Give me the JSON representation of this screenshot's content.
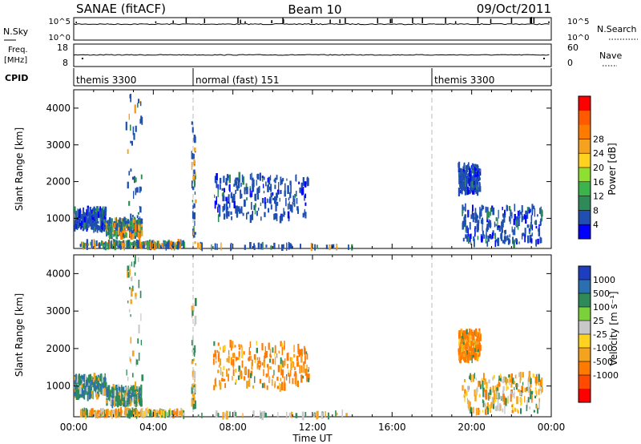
{
  "header": {
    "radar": "SANAE (fitACF)",
    "beam": "Beam 10",
    "date": "09/Oct/2011"
  },
  "strips": {
    "nsky": {
      "label": "N.Sky",
      "ticks": [
        "10^5",
        "10^0"
      ]
    },
    "nsearch": {
      "label": "N.Search",
      "ticks": [
        "10^5",
        "10^0"
      ]
    },
    "freq": {
      "label_top": "Freq.",
      "label_bottom": "[MHz]",
      "ticks": [
        "18",
        "8"
      ]
    },
    "nave": {
      "label": "Nave",
      "ticks": [
        "60",
        "0"
      ]
    },
    "cpid": {
      "label": "CPID",
      "segments": [
        {
          "name": "themis 3300",
          "start": 0,
          "end": 6
        },
        {
          "name": "normal (fast) 151",
          "start": 6,
          "end": 18
        },
        {
          "name": "themis 3300",
          "start": 18,
          "end": 24
        }
      ]
    }
  },
  "chart_data": [
    {
      "type": "heatmap",
      "title": "Power",
      "ylabel": "Slant Range [km]",
      "xlabel": "Time UT",
      "xlim": [
        0,
        24
      ],
      "ylim": [
        180,
        4500
      ],
      "yticks": [
        1000,
        2000,
        3000,
        4000
      ],
      "xticks": [
        "00:00",
        "04:00",
        "08:00",
        "12:00",
        "16:00",
        "20:00",
        "00:00"
      ],
      "colorbar": {
        "label": "Power [dB]",
        "ticks": [
          "4",
          "8",
          "12",
          "16",
          "20",
          "24",
          "28"
        ],
        "colors": [
          "#0000ff",
          "#1f4fb0",
          "#2e8b57",
          "#3cb44b",
          "#8fdf30",
          "#ffd21f",
          "#f5a21f",
          "#ff7a00",
          "#ff5a00",
          "#ff0000"
        ]
      },
      "clusters": [
        {
          "t": [
            0.0,
            1.6
          ],
          "r": [
            700,
            1250
          ],
          "level": "low"
        },
        {
          "t": [
            1.6,
            3.4
          ],
          "r": [
            500,
            950
          ],
          "level": "mixed"
        },
        {
          "t": [
            0.3,
            5.5
          ],
          "r": [
            230,
            330
          ],
          "level": "mixed"
        },
        {
          "t": [
            2.6,
            3.4
          ],
          "r": [
            1000,
            4400
          ],
          "level": "sparse"
        },
        {
          "t": [
            5.9,
            6.1
          ],
          "r": [
            300,
            3600
          ],
          "level": "sparse"
        },
        {
          "t": [
            6.0,
            14.0
          ],
          "r": [
            200,
            260
          ],
          "level": "sparse"
        },
        {
          "t": [
            7.0,
            11.8
          ],
          "r": [
            950,
            2150
          ],
          "level": "low"
        },
        {
          "t": [
            19.3,
            20.4
          ],
          "r": [
            1700,
            2450
          ],
          "level": "low"
        },
        {
          "t": [
            19.5,
            23.5
          ],
          "r": [
            300,
            1300
          ],
          "level": "low"
        }
      ]
    },
    {
      "type": "heatmap",
      "title": "Velocity",
      "ylabel": "Slant Range [km]",
      "xlabel": "Time UT",
      "xlim": [
        0,
        24
      ],
      "ylim": [
        180,
        4500
      ],
      "yticks": [
        1000,
        2000,
        3000,
        4000
      ],
      "xticks": [
        "00:00",
        "04:00",
        "08:00",
        "12:00",
        "16:00",
        "20:00",
        "00:00"
      ],
      "colorbar": {
        "label": "Velocity [m s⁻¹]",
        "ticks": [
          "1000",
          "500",
          "100",
          "25",
          "-25",
          "-100",
          "-500",
          "-1000"
        ],
        "colors": [
          "#1d3fbf",
          "#2a6fb0",
          "#2e8b57",
          "#7ad13a",
          "#c8c8c8",
          "#ffd21f",
          "#f5a21f",
          "#ff7a00",
          "#ff4a00",
          "#ff0000"
        ]
      },
      "clusters": [
        {
          "t": [
            0.0,
            1.6
          ],
          "r": [
            700,
            1250
          ],
          "level": "positive"
        },
        {
          "t": [
            1.6,
            3.4
          ],
          "r": [
            500,
            950
          ],
          "level": "positive"
        },
        {
          "t": [
            0.3,
            5.5
          ],
          "r": [
            230,
            330
          ],
          "level": "mixed"
        },
        {
          "t": [
            2.6,
            3.4
          ],
          "r": [
            1000,
            4400
          ],
          "level": "sparse"
        },
        {
          "t": [
            5.9,
            6.1
          ],
          "r": [
            300,
            3600
          ],
          "level": "sparse"
        },
        {
          "t": [
            6.0,
            14.0
          ],
          "r": [
            200,
            260
          ],
          "level": "sparse"
        },
        {
          "t": [
            7.0,
            11.8
          ],
          "r": [
            950,
            2150
          ],
          "level": "negative"
        },
        {
          "t": [
            19.3,
            20.4
          ],
          "r": [
            1700,
            2450
          ],
          "level": "negative"
        },
        {
          "t": [
            19.5,
            23.5
          ],
          "r": [
            300,
            1300
          ],
          "level": "mixed"
        }
      ]
    }
  ],
  "colors": {
    "axis": "#000000",
    "boundary_dash": "#bbbbbb"
  }
}
